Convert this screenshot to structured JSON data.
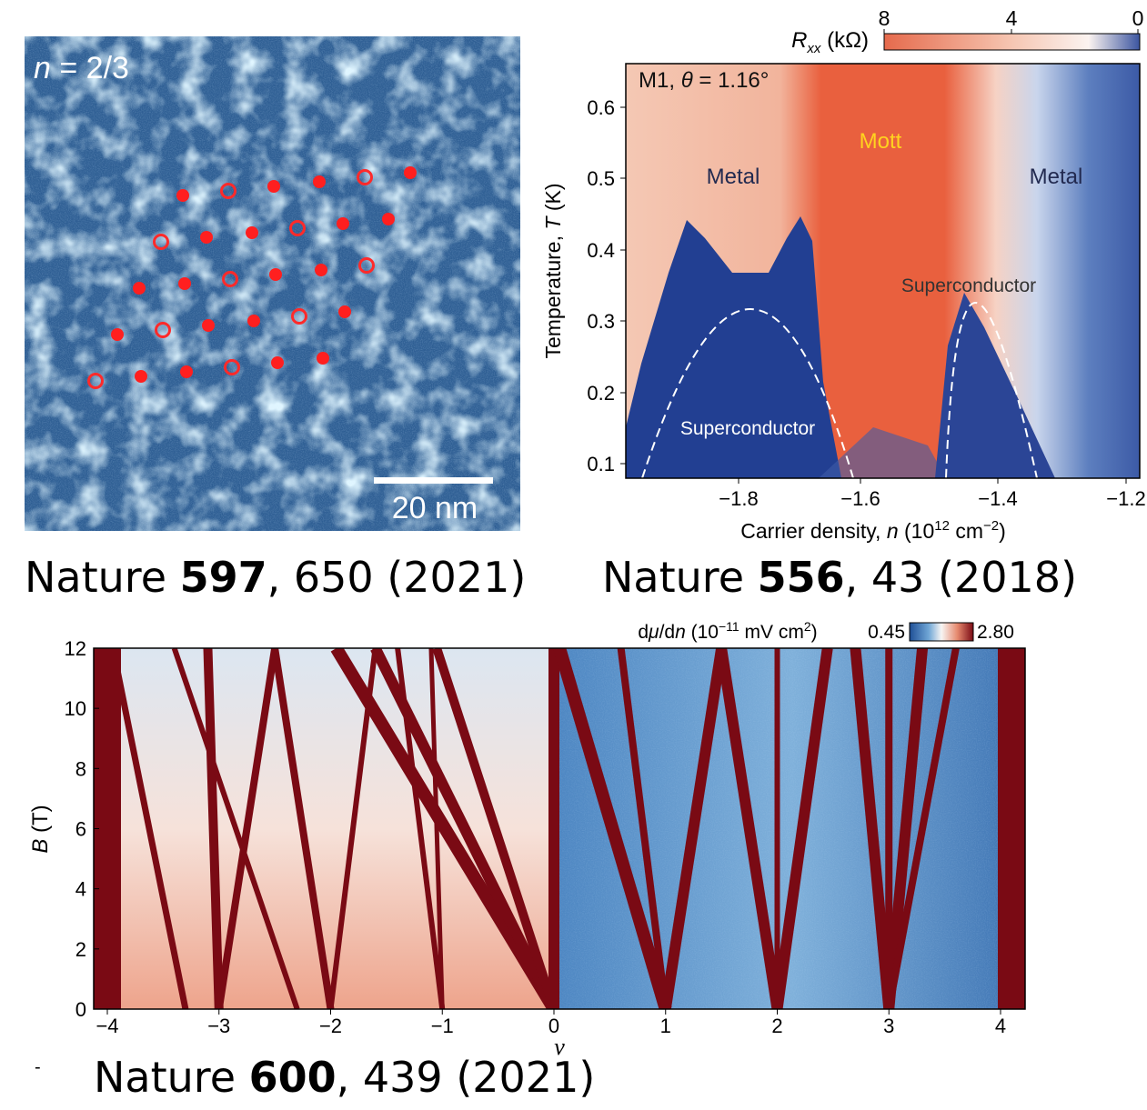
{
  "panel_a": {
    "label_var": "n",
    "label_rest": " = 2/3",
    "scale_bar": "20 nm"
  },
  "caption_a": {
    "journal": "Nature ",
    "volume": "597",
    "rest": ", 650 (2021)"
  },
  "panel_b": {
    "colorbar_ticks": [
      "8",
      "4",
      "0"
    ],
    "colorbar_label": {
      "symbol": "R",
      "subscript": "xx",
      "unit": " (kΩ)"
    },
    "sample_label": {
      "prefix": "M1, ",
      "symbol": "θ",
      "rest": " = 1.16°"
    },
    "annotations": {
      "metal_left": "Metal",
      "mott": "Mott",
      "metal_right": "Metal",
      "sc_right": "Superconductor",
      "sc_left": "Superconductor"
    },
    "yticks": [
      "0.6",
      "0.5",
      "0.4",
      "0.3",
      "0.2",
      "0.1"
    ],
    "xticks": [
      "−1.8",
      "−1.6",
      "−1.4",
      "−1.2"
    ],
    "ylabel": {
      "text": "Temperature, ",
      "symbol": "T",
      "unit": " (K)"
    },
    "xlabel": {
      "text": "Carrier density, ",
      "symbol": "n",
      "unit": " (10",
      "exp": "12",
      "unit2": " cm",
      "exp2": "−2",
      "close": ")"
    }
  },
  "caption_b": {
    "journal": "Nature ",
    "volume": "556",
    "rest": ", 43 (2018)"
  },
  "panel_c": {
    "colorbar_label": {
      "d1": "d",
      "symbol": "μ",
      "d2": "/d",
      "symbol2": "n",
      "unit": " (10",
      "exp": "−11",
      "unit2": " mV cm",
      "exp2": "2",
      "close": ")"
    },
    "colorbar_min": "0.45",
    "colorbar_max": "2.80",
    "yticks": [
      "0",
      "2",
      "4",
      "6",
      "8",
      "10",
      "12"
    ],
    "xticks": [
      "−4",
      "−3",
      "−2",
      "−1",
      "0",
      "1",
      "2",
      "3",
      "4"
    ],
    "ylabel": {
      "symbol": "B",
      "unit": " (T)"
    },
    "xlabel": "ν"
  },
  "caption_c": {
    "journal": "Nature ",
    "volume": "600",
    "rest": ", 439 (2021)"
  },
  "dash": "-"
}
